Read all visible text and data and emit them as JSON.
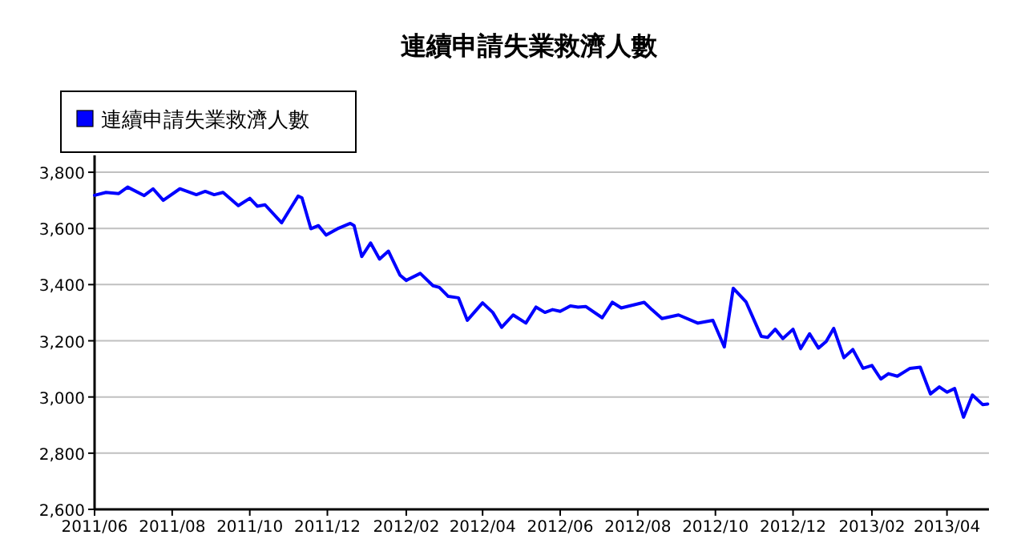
{
  "chart_data": {
    "type": "line",
    "title": "連續申請失業救濟人數",
    "legend": "top left",
    "grid": "y",
    "marker": "none",
    "line_style": "solid",
    "xlim": [
      "2011-06-01",
      "2013-05-04"
    ],
    "ylim": [
      2600,
      3860
    ],
    "xticks": [
      {
        "value": "2011-06",
        "label": "2011/06"
      },
      {
        "value": "2011-08",
        "label": "2011/08"
      },
      {
        "value": "2011-10",
        "label": "2011/10"
      },
      {
        "value": "2011-12",
        "label": "2011/12"
      },
      {
        "value": "2012-02",
        "label": "2012/02"
      },
      {
        "value": "2012-04",
        "label": "2012/04"
      },
      {
        "value": "2012-06",
        "label": "2012/06"
      },
      {
        "value": "2012-08",
        "label": "2012/08"
      },
      {
        "value": "2012-10",
        "label": "2012/10"
      },
      {
        "value": "2012-12",
        "label": "2012/12"
      },
      {
        "value": "2013-02",
        "label": "2013/02"
      },
      {
        "value": "2013-04",
        "label": "2013/04"
      }
    ],
    "yticks": [
      {
        "value": 2600,
        "label": "2,600"
      },
      {
        "value": 2800,
        "label": "2,800"
      },
      {
        "value": 3000,
        "label": "3,000"
      },
      {
        "value": 3200,
        "label": "3,200"
      },
      {
        "value": 3400,
        "label": "3,400"
      },
      {
        "value": 3600,
        "label": "3,600"
      },
      {
        "value": 3800,
        "label": "3,800"
      }
    ],
    "x": [
      "2011-06-01",
      "2011-06-10",
      "2011-06-20",
      "2011-06-27",
      "2011-07-10",
      "2011-07-17",
      "2011-07-25",
      "2011-08-07",
      "2011-08-20",
      "2011-08-27",
      "2011-09-03",
      "2011-09-10",
      "2011-09-22",
      "2011-10-01",
      "2011-10-07",
      "2011-10-13",
      "2011-10-26",
      "2011-11-08",
      "2011-11-11",
      "2011-11-18",
      "2011-11-24",
      "2011-11-30",
      "2011-12-10",
      "2011-12-19",
      "2011-12-22",
      "2011-12-28",
      "2012-01-04",
      "2012-01-11",
      "2012-01-18",
      "2012-01-27",
      "2012-02-01",
      "2012-02-12",
      "2012-02-22",
      "2012-02-27",
      "2012-03-05",
      "2012-03-13",
      "2012-03-20",
      "2012-04-01",
      "2012-04-09",
      "2012-04-16",
      "2012-04-25",
      "2012-05-05",
      "2012-05-13",
      "2012-05-20",
      "2012-05-26",
      "2012-06-01",
      "2012-06-09",
      "2012-06-15",
      "2012-06-21",
      "2012-07-04",
      "2012-07-12",
      "2012-07-19",
      "2012-08-06",
      "2012-08-12",
      "2012-08-20",
      "2012-09-02",
      "2012-09-17",
      "2012-09-29",
      "2012-10-08",
      "2012-10-15",
      "2012-10-25",
      "2012-11-06",
      "2012-11-11",
      "2012-11-17",
      "2012-11-23",
      "2012-12-01",
      "2012-12-07",
      "2012-12-14",
      "2012-12-21",
      "2012-12-27",
      "2013-01-02",
      "2013-01-10",
      "2013-01-17",
      "2013-01-25",
      "2013-02-01",
      "2013-02-08",
      "2013-02-14",
      "2013-02-21",
      "2013-03-03",
      "2013-03-11",
      "2013-03-19",
      "2013-03-26",
      "2013-04-01",
      "2013-04-07",
      "2013-04-14",
      "2013-04-21",
      "2013-04-29",
      "2013-05-03"
    ],
    "series": [
      {
        "name": "連續申請失業救濟人數",
        "color": "#0000ff",
        "values": [
          3718,
          3728,
          3724,
          3747,
          3717,
          3741,
          3700,
          3741,
          3720,
          3732,
          3720,
          3728,
          3681,
          3707,
          3679,
          3684,
          3620,
          3715,
          3709,
          3599,
          3610,
          3576,
          3601,
          3618,
          3610,
          3500,
          3548,
          3491,
          3519,
          3434,
          3415,
          3440,
          3396,
          3390,
          3358,
          3353,
          3273,
          3335,
          3301,
          3248,
          3292,
          3263,
          3320,
          3301,
          3311,
          3305,
          3324,
          3320,
          3322,
          3282,
          3337,
          3317,
          3337,
          3311,
          3279,
          3292,
          3263,
          3273,
          3178,
          3387,
          3339,
          3216,
          3212,
          3241,
          3208,
          3241,
          3172,
          3225,
          3174,
          3197,
          3244,
          3140,
          3169,
          3102,
          3112,
          3064,
          3083,
          3074,
          3102,
          3106,
          3011,
          3036,
          3017,
          3030,
          2928,
          3007,
          2973,
          2975
        ]
      }
    ]
  }
}
